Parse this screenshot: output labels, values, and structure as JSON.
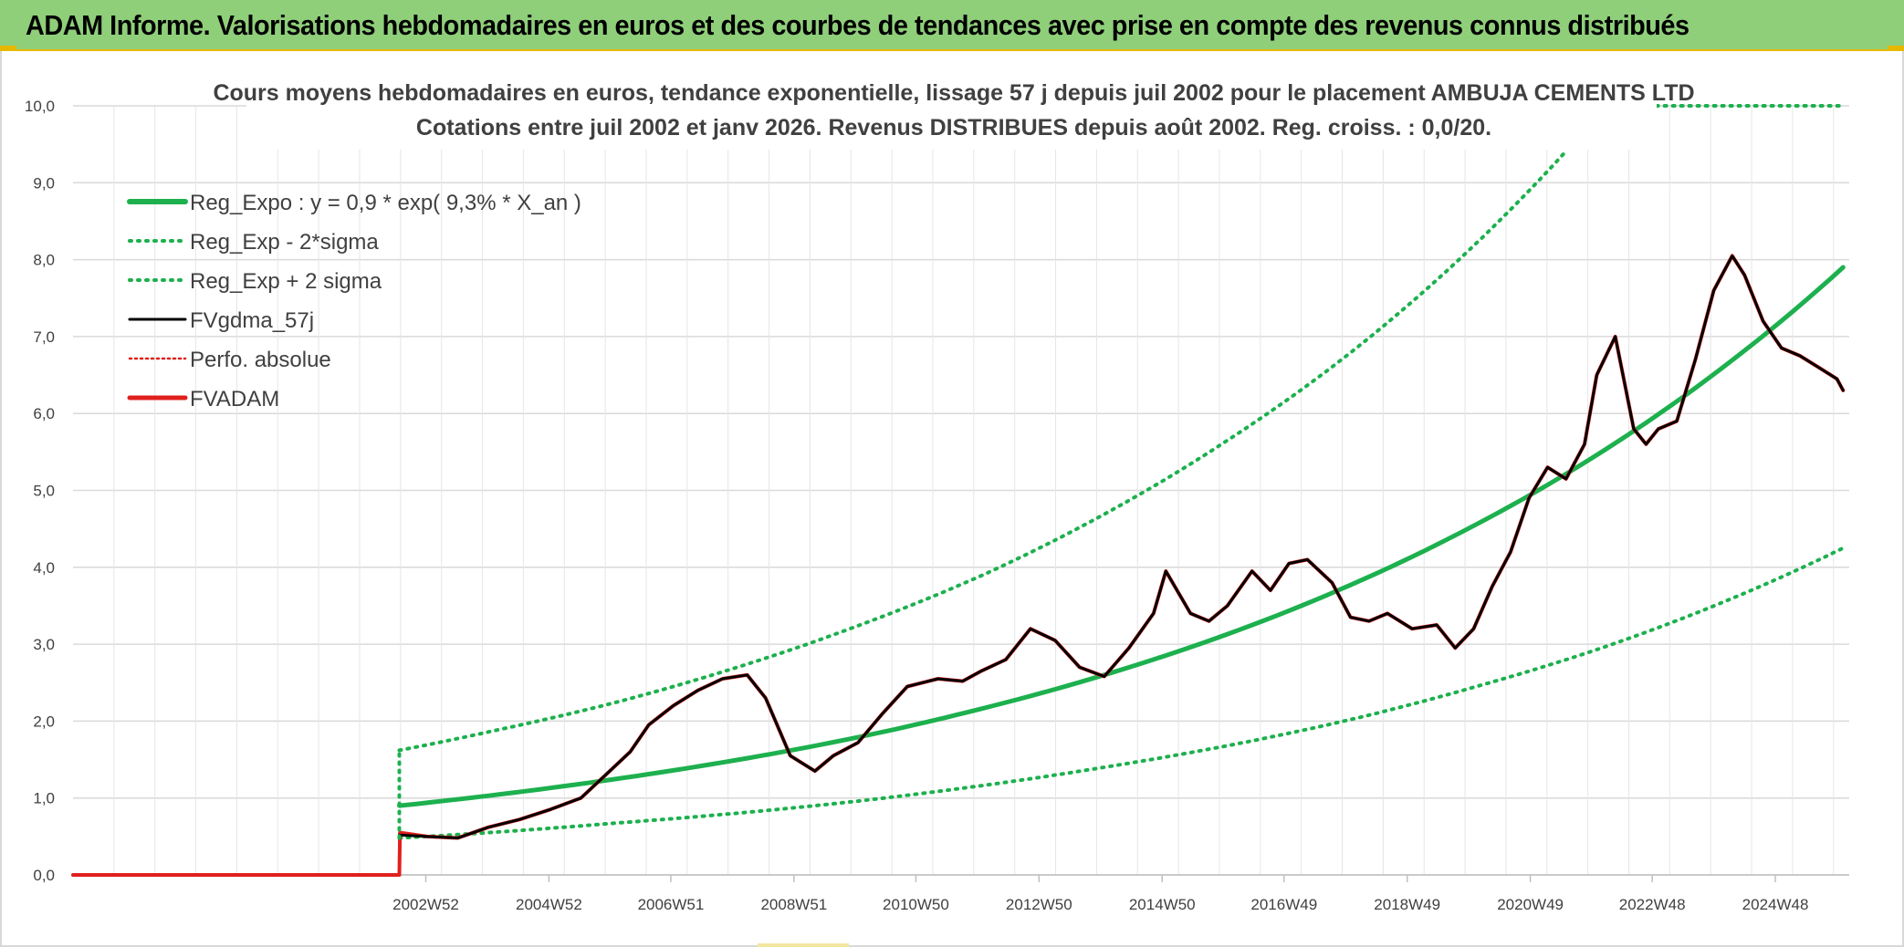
{
  "header": {
    "title": "ADAM Informe. Valorisations hebdomadaires en euros et des courbes de tendances avec prise en compte des revenus connus distribués"
  },
  "colors": {
    "banner": "#8fcf7a",
    "accent": "#e6b800",
    "trend": "#1db04e",
    "smooth": "#000000",
    "price": "#e0201c",
    "perfo": "#e0201c",
    "grid": "#d9d9d9",
    "text": "#404040"
  },
  "chart_data": {
    "type": "line",
    "title": [
      "Cours moyens hebdomadaires en euros, tendance exponentielle, lissage 57 j depuis juil 2002 pour le placement AMBUJA CEMENTS LTD",
      "Cotations entre juil 2002 et janv 2026. Revenus DISTRIBUES depuis août 2002. Reg. croiss. : 0,0/20."
    ],
    "xlabel": "",
    "ylabel": "",
    "ylim": [
      0,
      10
    ],
    "xlim": [
      1997.25,
      2026.1
    ],
    "grid": true,
    "legend_position": "top-left",
    "y_ticks": [
      "0,0",
      "1,0",
      "2,0",
      "3,0",
      "4,0",
      "5,0",
      "6,0",
      "7,0",
      "8,0",
      "9,0",
      "10,0"
    ],
    "x_ticks": [
      {
        "label": "2002W52",
        "x": 2002.98
      },
      {
        "label": "2004W52",
        "x": 2004.98
      },
      {
        "label": "2006W51",
        "x": 2006.96
      },
      {
        "label": "2008W51",
        "x": 2008.96
      },
      {
        "label": "2010W50",
        "x": 2010.94
      },
      {
        "label": "2012W50",
        "x": 2012.94
      },
      {
        "label": "2014W50",
        "x": 2014.94
      },
      {
        "label": "2016W49",
        "x": 2016.92
      },
      {
        "label": "2018W49",
        "x": 2018.92
      },
      {
        "label": "2020W49",
        "x": 2020.92
      },
      {
        "label": "2022W48",
        "x": 2022.9
      },
      {
        "label": "2024W48",
        "x": 2024.9
      }
    ],
    "trend": {
      "start_year": 2002.55,
      "start_value": 0.9,
      "rate": 0.093,
      "end_year": 2026.0
    },
    "series": [
      {
        "name": "Reg_Expo : y = 0,9 * exp( 9,3% *  X_an )",
        "style": "solid-thick",
        "color": "#1db04e",
        "x": [
          2002.55,
          2004,
          2006,
          2008,
          2010,
          2012,
          2014,
          2016,
          2018,
          2020,
          2022,
          2024,
          2026.0
        ],
        "values": [
          0.9,
          1.03,
          1.24,
          1.49,
          1.79,
          2.16,
          2.6,
          3.13,
          3.77,
          4.54,
          5.46,
          6.57,
          7.9
        ]
      },
      {
        "name": "Reg_Exp - 2*sigma",
        "style": "dotted",
        "color": "#1db04e",
        "x": [
          2002.55,
          2004,
          2006,
          2008,
          2010,
          2012,
          2014,
          2016,
          2018,
          2020,
          2022,
          2024,
          2026.0
        ],
        "values": [
          0.48,
          0.55,
          0.67,
          0.8,
          0.96,
          1.16,
          1.4,
          1.68,
          2.02,
          2.44,
          2.93,
          3.53,
          4.25
        ]
      },
      {
        "name": "Reg_Exp + 2 sigma",
        "style": "dotted",
        "color": "#1db04e",
        "x": [
          2002.55,
          2004,
          2006,
          2008,
          2010,
          2012,
          2014,
          2016,
          2018,
          2020,
          2021.5
        ],
        "values": [
          1.62,
          1.86,
          2.23,
          2.69,
          3.24,
          3.89,
          4.69,
          5.65,
          6.79,
          8.18,
          9.41
        ]
      },
      {
        "name": "FVgdma_57j",
        "style": "solid",
        "color": "#000000",
        "x": [
          2002.55,
          2003.0,
          2003.5,
          2004.0,
          2004.5,
          2005.0,
          2005.5,
          2005.9,
          2006.3,
          2006.6,
          2007.0,
          2007.4,
          2007.8,
          2008.2,
          2008.5,
          2008.9,
          2009.3,
          2009.6,
          2010.0,
          2010.4,
          2010.8,
          2011.3,
          2011.7,
          2012.0,
          2012.4,
          2012.8,
          2013.2,
          2013.6,
          2014.0,
          2014.4,
          2014.8,
          2015.0,
          2015.4,
          2015.7,
          2016.0,
          2016.4,
          2016.7,
          2017.0,
          2017.3,
          2017.7,
          2018.0,
          2018.3,
          2018.6,
          2019.0,
          2019.4,
          2019.7,
          2020.0,
          2020.3,
          2020.6,
          2020.9,
          2021.2,
          2021.5,
          2021.8,
          2022.0,
          2022.3,
          2022.6,
          2022.8,
          2023.0,
          2023.3,
          2023.6,
          2023.9,
          2024.2,
          2024.4,
          2024.7,
          2025.0,
          2025.3,
          2025.6,
          2025.9,
          2026.0
        ],
        "values": [
          0.52,
          0.5,
          0.48,
          0.62,
          0.72,
          0.85,
          1.0,
          1.3,
          1.6,
          1.95,
          2.2,
          2.4,
          2.55,
          2.6,
          2.3,
          1.55,
          1.35,
          1.55,
          1.72,
          2.1,
          2.45,
          2.55,
          2.52,
          2.65,
          2.8,
          3.2,
          3.05,
          2.7,
          2.58,
          2.95,
          3.4,
          3.95,
          3.4,
          3.3,
          3.5,
          3.95,
          3.7,
          4.05,
          4.1,
          3.8,
          3.35,
          3.3,
          3.4,
          3.2,
          3.25,
          2.95,
          3.2,
          3.75,
          4.2,
          4.9,
          5.3,
          5.15,
          5.6,
          6.5,
          7.0,
          5.8,
          5.6,
          5.8,
          5.9,
          6.7,
          7.6,
          8.05,
          7.8,
          7.2,
          6.85,
          6.75,
          6.6,
          6.45,
          6.3
        ]
      },
      {
        "name": "Perfo. absolue",
        "style": "dotted",
        "color": "#e0201c",
        "x": [],
        "values": []
      },
      {
        "name": "FVADAM",
        "style": "solid-thick",
        "color": "#e0201c",
        "x": [
          1997.25,
          2002.55,
          2002.56,
          2003.0,
          2003.5,
          2004.0,
          2004.5,
          2005.0,
          2005.5,
          2005.9,
          2006.3,
          2006.6,
          2007.0,
          2007.4,
          2007.8,
          2008.2,
          2008.5,
          2008.9,
          2009.3,
          2009.6,
          2010.0,
          2010.4,
          2010.8,
          2011.3,
          2011.7,
          2012.0,
          2012.4,
          2012.8,
          2013.2,
          2013.6,
          2014.0,
          2014.4,
          2014.8,
          2015.0,
          2015.4,
          2015.7,
          2016.0,
          2016.4,
          2016.7,
          2017.0,
          2017.3,
          2017.7,
          2018.0,
          2018.3,
          2018.6,
          2019.0,
          2019.4,
          2019.7,
          2020.0,
          2020.3,
          2020.6,
          2020.9,
          2021.2,
          2021.5,
          2021.8,
          2022.0,
          2022.3,
          2022.6,
          2022.8,
          2023.0,
          2023.3,
          2023.6,
          2023.9,
          2024.2,
          2024.4,
          2024.7,
          2025.0,
          2025.3,
          2025.6,
          2025.9,
          2026.0
        ],
        "values": [
          0.0,
          0.0,
          0.55,
          0.5,
          0.48,
          0.62,
          0.72,
          0.85,
          1.0,
          1.3,
          1.6,
          1.95,
          2.2,
          2.4,
          2.55,
          2.6,
          2.3,
          1.55,
          1.35,
          1.55,
          1.72,
          2.1,
          2.45,
          2.55,
          2.52,
          2.65,
          2.8,
          3.2,
          3.05,
          2.7,
          2.58,
          2.95,
          3.4,
          3.95,
          3.4,
          3.3,
          3.5,
          3.95,
          3.7,
          4.05,
          4.1,
          3.8,
          3.35,
          3.3,
          3.4,
          3.2,
          3.25,
          2.95,
          3.2,
          3.75,
          4.2,
          4.9,
          5.3,
          5.15,
          5.6,
          6.5,
          7.0,
          5.8,
          5.6,
          5.8,
          5.9,
          6.7,
          7.6,
          8.05,
          7.8,
          7.2,
          6.85,
          6.75,
          6.6,
          6.45,
          6.3
        ]
      }
    ]
  }
}
